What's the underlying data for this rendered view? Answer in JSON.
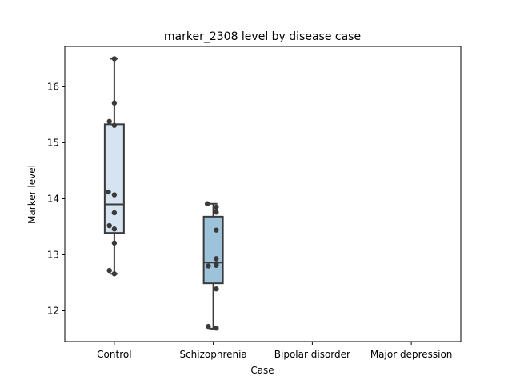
{
  "chart_data": {
    "type": "box",
    "title": "marker_2308 level by disease case",
    "xlabel": "Case",
    "ylabel": "Marker level",
    "categories": [
      "Control",
      "Schizophrenia",
      "Bipolar disorder",
      "Major depression"
    ],
    "yticks": [
      12,
      13,
      14,
      15,
      16
    ],
    "ylim": [
      11.45,
      16.72
    ],
    "grid": false,
    "boxes": [
      {
        "category": "Control",
        "whisker_low": 12.66,
        "q1": 13.39,
        "median": 13.9,
        "q3": 15.33,
        "whisker_high": 16.5,
        "color": "#d6e3f0"
      },
      {
        "category": "Schizophrenia",
        "whisker_low": 11.68,
        "q1": 12.49,
        "median": 12.86,
        "q3": 13.68,
        "whisker_high": 13.91,
        "color": "#9cc3da"
      }
    ],
    "points": [
      {
        "category": "Control",
        "values": [
          16.5,
          15.71,
          15.38,
          15.31,
          14.12,
          14.07,
          13.75,
          13.52,
          13.46,
          13.21,
          12.72,
          12.66
        ],
        "offsets": [
          0.0,
          0.0,
          -0.05,
          0.0,
          -0.06,
          0.0,
          0.0,
          -0.05,
          0.0,
          0.0,
          -0.05,
          0.0
        ]
      },
      {
        "category": "Schizophrenia",
        "values": [
          13.91,
          13.85,
          13.76,
          13.44,
          12.93,
          12.84,
          12.8,
          12.81,
          12.39,
          11.72,
          11.69
        ],
        "offsets": [
          -0.06,
          0.03,
          0.03,
          0.03,
          0.03,
          0.03,
          -0.05,
          0.03,
          0.03,
          -0.05,
          0.03
        ]
      }
    ]
  },
  "colors": {
    "box_edge": "#3a3a3a",
    "point": "#3a3a3a",
    "axes": "#000000"
  }
}
